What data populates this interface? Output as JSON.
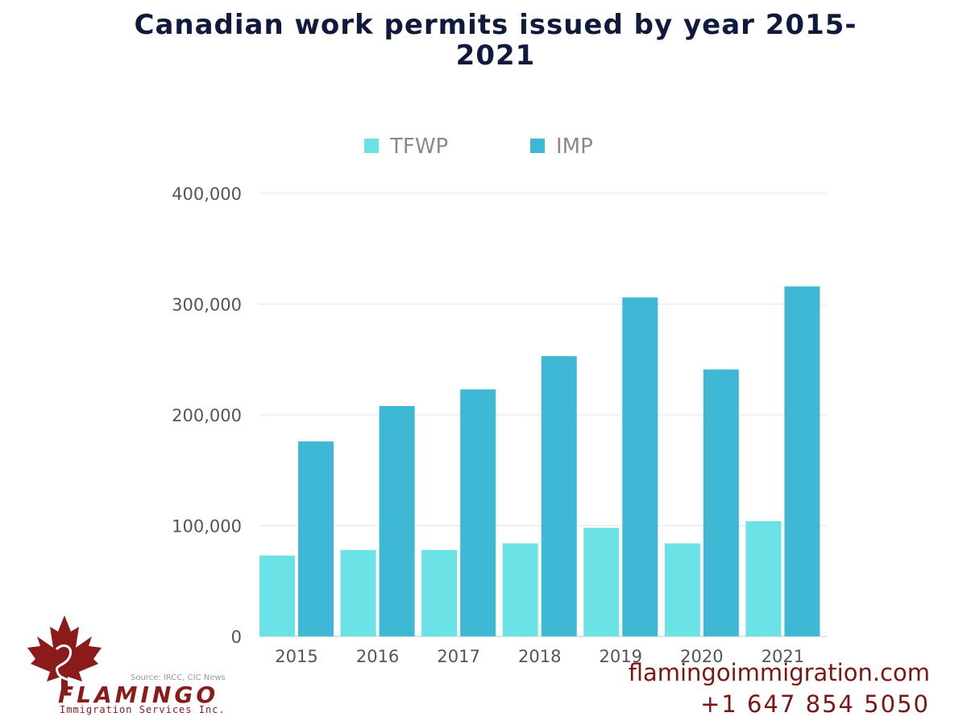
{
  "title_line1": "Canadian work permits issued by year 2015-",
  "title_line2": "2021",
  "source": "Source: IRCC, CIC News",
  "brand": {
    "name": "FLAMINGO",
    "tagline": "Immigration Services Inc.",
    "website": "flamingoimmigration.com",
    "phone": "+1 647 854 5050",
    "color": "#8b1a1a"
  },
  "chart_data": {
    "type": "bar",
    "title": "Canadian work permits issued by year 2015-2021",
    "categories": [
      "2015",
      "2016",
      "2017",
      "2018",
      "2019",
      "2020",
      "2021"
    ],
    "series": [
      {
        "name": "TFWP",
        "color": "#6ae2e6",
        "values": [
          73000,
          78000,
          78000,
          84000,
          98000,
          84000,
          104000
        ]
      },
      {
        "name": "IMP",
        "color": "#3fb8d6",
        "values": [
          176000,
          208000,
          223000,
          253000,
          306000,
          241000,
          316000
        ]
      }
    ],
    "yticks": [
      "0",
      "100,000",
      "200,000",
      "300,000",
      "400,000"
    ],
    "ylim": [
      0,
      400000
    ],
    "legend": "top",
    "grid": true,
    "xlabel": "",
    "ylabel": ""
  }
}
